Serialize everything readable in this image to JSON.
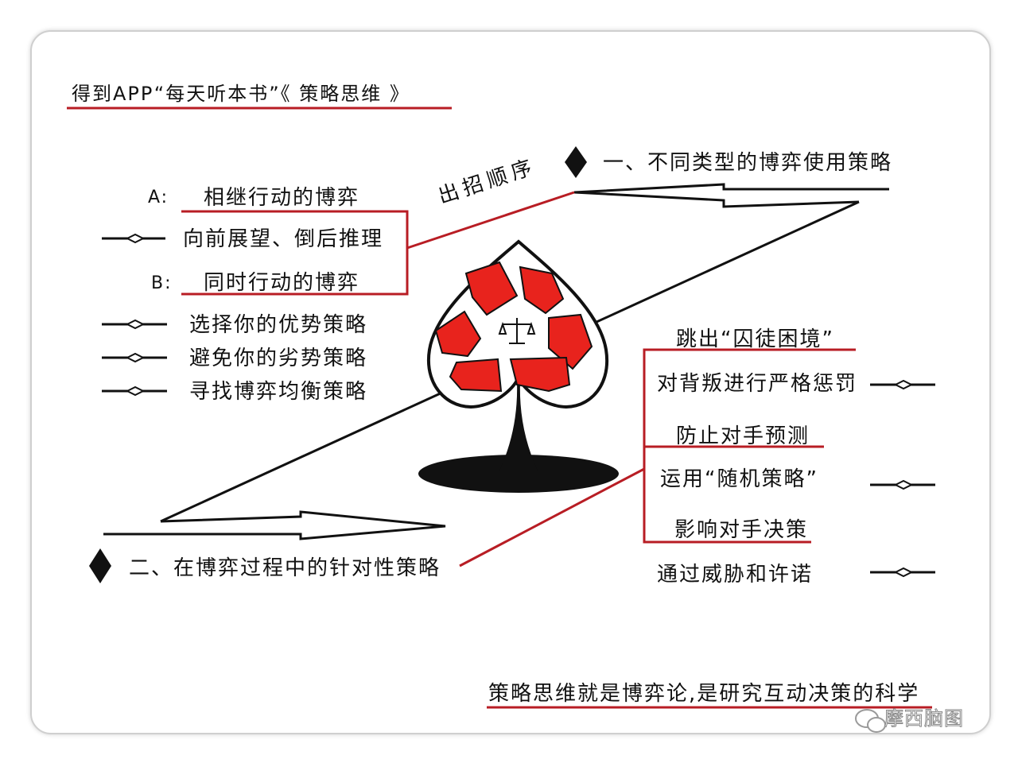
{
  "title": "得到APP“每天听本书”《 策略思维 》",
  "section_one": {
    "heading": "一、不同类型的博弈使用策略",
    "connector_label": "出招顺序",
    "a_prefix": "A:",
    "a_label": "相继行动的博弈",
    "a_items": [
      "向前展望、倒后推理"
    ],
    "b_prefix": "B:",
    "b_label": "同时行动的博弈",
    "b_items": [
      "选择你的优势策略",
      "避免你的劣势策略",
      "寻找博弈均衡策略"
    ]
  },
  "section_two": {
    "heading": "二、在博弈过程中的针对性策略",
    "group1_label": "跳出“囚徒困境”",
    "group1_items": [
      "对背叛进行严格惩罚"
    ],
    "group2_label": "防止对手预测",
    "group2_items": [
      "运用“随机策略”"
    ],
    "group3_label": "影响对手决策",
    "group3_items": [
      "通过威胁和许诺"
    ]
  },
  "footer_caption": "策略思维就是博弈论,是研究互动决策的科学",
  "watermark": "摩西脑图",
  "colors": {
    "accent": "#b81d24",
    "ink": "#111111",
    "icon_red": "#e8231d"
  }
}
